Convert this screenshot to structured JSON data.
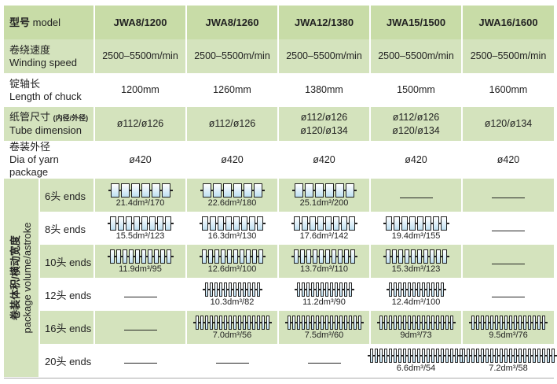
{
  "header": {
    "label_cn": "型号",
    "label_en": "model",
    "models": [
      "JWA8/1200",
      "JWA8/1260",
      "JWA12/1380",
      "JWA15/1500",
      "JWA16/1600"
    ]
  },
  "specs": [
    {
      "cn": "卷绕速度",
      "en": "Winding speed",
      "values": [
        "2500–5500m/min",
        "2500–5500m/min",
        "2500–5500m/min",
        "2500–5500m/min",
        "2500–5500m/min"
      ]
    },
    {
      "cn": "锭轴长",
      "en": "Length of chuck",
      "values": [
        "1200mm",
        "1260mm",
        "1380mm",
        "1500mm",
        "1600mm"
      ]
    },
    {
      "cn": "纸管尺寸",
      "cn_note": "(内径/外径)",
      "en": "Tube dimension",
      "values": [
        "ø112/ø126",
        "ø112/ø126",
        "ø112/ø126\nø120/ø134",
        "ø112/ø126\nø120/ø134",
        "ø120/ø134"
      ]
    },
    {
      "cn": "卷装外径",
      "en": "Dia of yarn package",
      "values": [
        "ø420",
        "ø420",
        "ø420",
        "ø420",
        "ø420"
      ]
    }
  ],
  "package": {
    "label_cn": "卷装体积/横动宽度",
    "label_en": "package volume/astroke",
    "rows": [
      {
        "ends": 6,
        "label": "6头 ends",
        "values": [
          "21.4dm³/170",
          "22.6dm³/180",
          "25.1dm³/200",
          null,
          null
        ]
      },
      {
        "ends": 8,
        "label": "8头 ends",
        "values": [
          "15.5dm³/123",
          "16.3dm³/130",
          "17.6dm³/142",
          "19.4dm³/155",
          null
        ]
      },
      {
        "ends": 10,
        "label": "10头 ends",
        "values": [
          "11.9dm³/95",
          "12.6dm³/100",
          "13.7dm³/110",
          "15.3dm³/123",
          null
        ]
      },
      {
        "ends": 12,
        "label": "12头 ends",
        "values": [
          null,
          "10.3dm³/82",
          "11.2dm³/90",
          "12.4dm³/100",
          null
        ]
      },
      {
        "ends": 16,
        "label": "16头 ends",
        "values": [
          null,
          "7.0dm³/56",
          "7.5dm³/60",
          "9dm³/73",
          "9.5dm³/76"
        ]
      },
      {
        "ends": 20,
        "label": "20头 ends",
        "values": [
          null,
          null,
          null,
          "6.6dm³/54",
          "7.2dm³/58"
        ]
      }
    ]
  },
  "colors": {
    "row_green": "#d4e3bd",
    "header_green": "#c8dca7",
    "bobbin_fill": "#bfe0f2"
  }
}
